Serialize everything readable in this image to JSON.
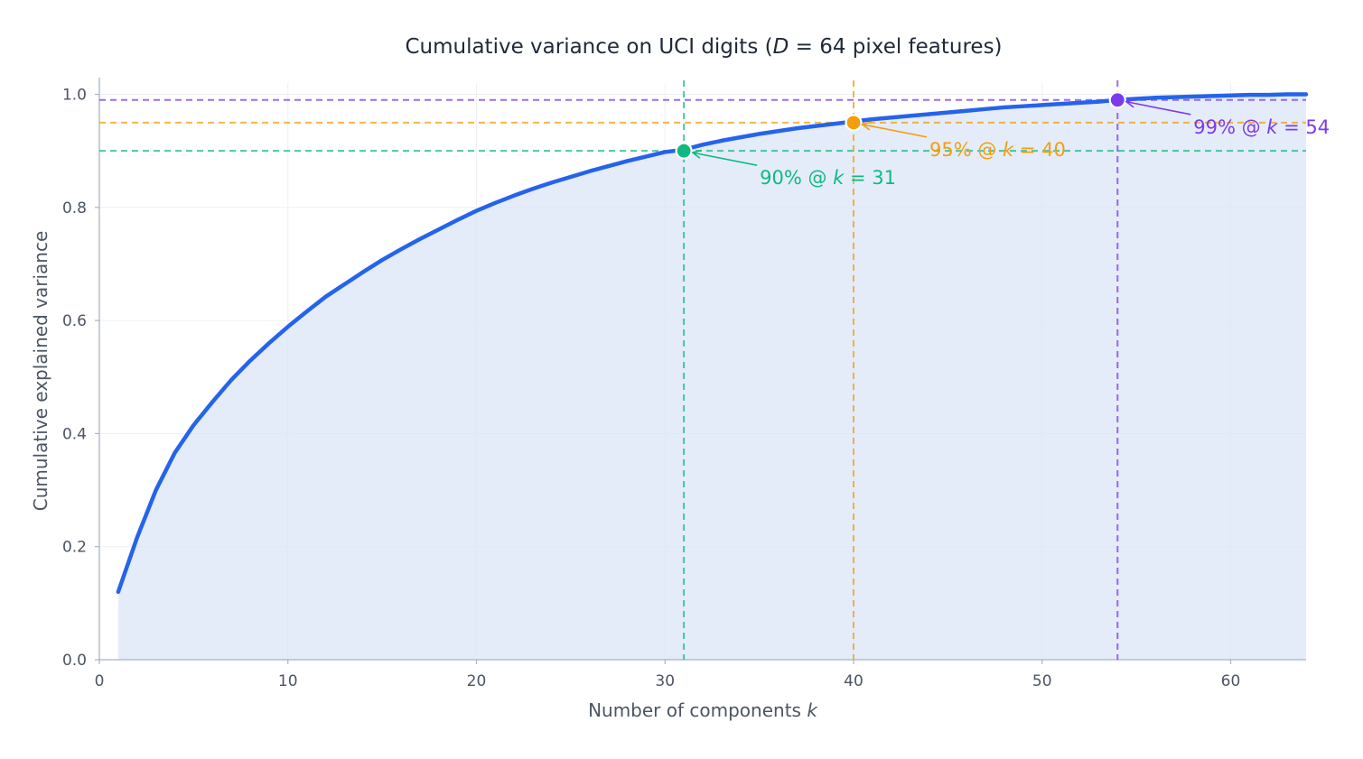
{
  "chart_data": {
    "type": "area",
    "title": {
      "prefix": "Cumulative variance on UCI digits (",
      "var": "D",
      "mid": " = 64",
      "suffix": " pixel features)"
    },
    "xlabel": {
      "text": "Number of components ",
      "var": "k"
    },
    "ylabel": "Cumulative explained variance",
    "xlim": [
      0,
      64
    ],
    "ylim": [
      0,
      1.02
    ],
    "x_ticks": [
      0,
      10,
      20,
      30,
      40,
      50,
      60
    ],
    "x_tick_labels": [
      "0",
      "10",
      "20",
      "30",
      "40",
      "50",
      "60"
    ],
    "y_ticks": [
      0,
      0.2,
      0.4,
      0.6,
      0.8,
      1.0
    ],
    "y_tick_labels": [
      "0.0",
      "0.2",
      "0.4",
      "0.6",
      "0.8",
      "1.0"
    ],
    "grid": true,
    "series": [
      {
        "x": [
          1,
          2,
          3,
          4,
          5,
          6,
          7,
          8,
          9,
          10,
          11,
          12,
          13,
          14,
          15,
          16,
          17,
          18,
          19,
          20,
          21,
          22,
          23,
          24,
          25,
          26,
          27,
          28,
          29,
          30,
          31,
          32,
          33,
          34,
          35,
          36,
          37,
          38,
          39,
          40,
          41,
          42,
          43,
          44,
          45,
          46,
          47,
          48,
          49,
          50,
          51,
          52,
          53,
          54,
          55,
          56,
          57,
          58,
          59,
          60,
          61,
          62,
          63,
          64
        ],
        "values": [
          0.12,
          0.216,
          0.3,
          0.366,
          0.415,
          0.456,
          0.495,
          0.529,
          0.56,
          0.589,
          0.616,
          0.642,
          0.664,
          0.686,
          0.707,
          0.726,
          0.744,
          0.761,
          0.778,
          0.794,
          0.808,
          0.821,
          0.833,
          0.844,
          0.854,
          0.864,
          0.873,
          0.882,
          0.89,
          0.898,
          0.902,
          0.911,
          0.918,
          0.924,
          0.93,
          0.935,
          0.94,
          0.944,
          0.948,
          0.952,
          0.956,
          0.959,
          0.962,
          0.965,
          0.968,
          0.971,
          0.974,
          0.977,
          0.979,
          0.981,
          0.983,
          0.985,
          0.987,
          0.99,
          0.992,
          0.994,
          0.995,
          0.996,
          0.997,
          0.998,
          0.999,
          0.999,
          1.0,
          1.0
        ],
        "color": "#2563eb",
        "fill_color": "#dbe6f8"
      }
    ],
    "thresholds": [
      {
        "level": 0.9,
        "k": 31,
        "color": "#10b981",
        "label_prefix": "90% @ ",
        "label_var": "k",
        "label_suffix": " = 31"
      },
      {
        "level": 0.95,
        "k": 40,
        "color": "#f59e0b",
        "label_prefix": "95% @ ",
        "label_var": "k",
        "label_suffix": " = 40"
      },
      {
        "level": 0.99,
        "k": 54,
        "color": "#7c3aed",
        "label_prefix": "99% @ ",
        "label_var": "k",
        "label_suffix": " = 54"
      }
    ]
  }
}
